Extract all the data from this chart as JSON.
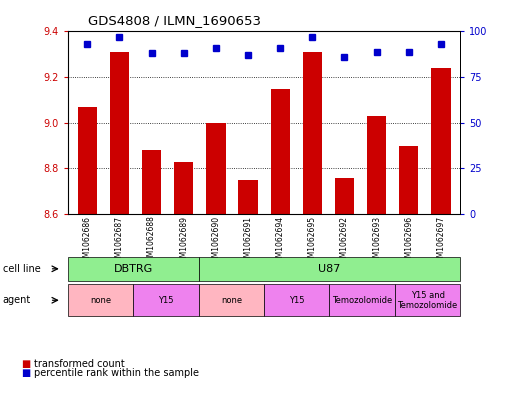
{
  "title": "GDS4808 / ILMN_1690653",
  "samples": [
    "GSM1062686",
    "GSM1062687",
    "GSM1062688",
    "GSM1062689",
    "GSM1062690",
    "GSM1062691",
    "GSM1062694",
    "GSM1062695",
    "GSM1062692",
    "GSM1062693",
    "GSM1062696",
    "GSM1062697"
  ],
  "red_values": [
    9.07,
    9.31,
    8.88,
    8.83,
    9.0,
    8.75,
    9.15,
    9.31,
    8.76,
    9.03,
    8.9,
    9.24
  ],
  "blue_values": [
    93,
    97,
    88,
    88,
    91,
    87,
    91,
    97,
    86,
    89,
    89,
    93
  ],
  "ylim_left": [
    8.6,
    9.4
  ],
  "ylim_right": [
    0,
    100
  ],
  "yticks_left": [
    8.6,
    8.8,
    9.0,
    9.2,
    9.4
  ],
  "yticks_right": [
    0,
    25,
    50,
    75,
    100
  ],
  "cell_line_groups": [
    {
      "label": "DBTRG",
      "start": 0,
      "end": 4,
      "color": "#90EE90"
    },
    {
      "label": "U87",
      "start": 4,
      "end": 12,
      "color": "#90EE90"
    }
  ],
  "agent_groups": [
    {
      "label": "none",
      "start": 0,
      "end": 2,
      "color": "#FFB6C1"
    },
    {
      "label": "Y15",
      "start": 2,
      "end": 4,
      "color": "#EE82EE"
    },
    {
      "label": "none",
      "start": 4,
      "end": 6,
      "color": "#FFB6C1"
    },
    {
      "label": "Y15",
      "start": 6,
      "end": 8,
      "color": "#EE82EE"
    },
    {
      "label": "Temozolomide",
      "start": 8,
      "end": 10,
      "color": "#EE82EE"
    },
    {
      "label": "Y15 and\nTemozolomide",
      "start": 10,
      "end": 12,
      "color": "#EE82EE"
    }
  ],
  "bar_color": "#CC0000",
  "dot_color": "#0000CC",
  "bg_color": "#FFFFFF",
  "left_axis_color": "#CC0000",
  "right_axis_color": "#0000CC"
}
